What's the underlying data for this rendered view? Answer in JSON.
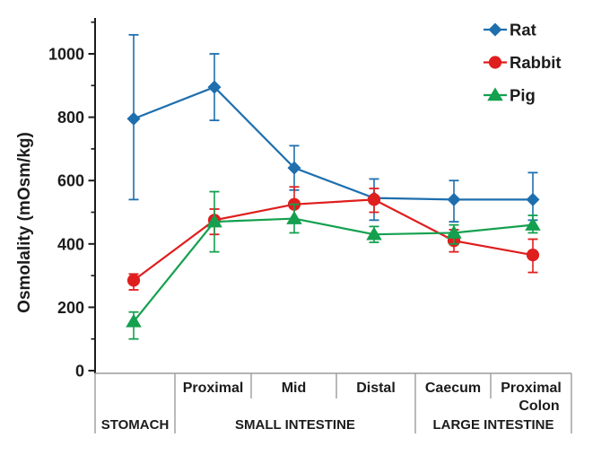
{
  "chart_data": {
    "type": "line",
    "title": "",
    "ylabel": "Osmolality  (mOsm/kg)",
    "ylim": [
      0,
      1100
    ],
    "yticks": [
      0,
      200,
      400,
      600,
      800,
      1000
    ],
    "yticks_minor": [
      100,
      300,
      500,
      700,
      900,
      1100
    ],
    "grid": false,
    "legend_position": "top-right",
    "categories": [
      "Stomach",
      "Proximal small intestine",
      "Mid small intestine",
      "Distal small intestine",
      "Caecum",
      "Proximal colon"
    ],
    "series": [
      {
        "name": "Rat",
        "color": "#1e6fae",
        "marker": "diamond",
        "values": [
          795,
          895,
          640,
          545,
          540,
          540
        ],
        "err_low": [
          540,
          790,
          570,
          475,
          470,
          475
        ],
        "err_high": [
          1060,
          1000,
          710,
          605,
          600,
          625
        ]
      },
      {
        "name": "Rabbit",
        "color": "#df1e1e",
        "marker": "circle",
        "values": [
          285,
          475,
          525,
          540,
          410,
          365
        ],
        "err_low": [
          255,
          430,
          470,
          500,
          375,
          310
        ],
        "err_high": [
          305,
          510,
          580,
          575,
          445,
          415
        ]
      },
      {
        "name": "Pig",
        "color": "#14a04f",
        "marker": "triangle",
        "values": [
          155,
          470,
          480,
          430,
          435,
          460
        ],
        "err_low": [
          100,
          375,
          435,
          405,
          400,
          435
        ],
        "err_high": [
          185,
          565,
          525,
          455,
          460,
          490
        ]
      }
    ],
    "x_axis_table": {
      "sub_labels": [
        "",
        "Proximal",
        "Mid",
        "Distal",
        "Caecum",
        "Proximal\nColon"
      ],
      "group_labels": [
        {
          "label": "STOMACH",
          "start": 0,
          "end": 1
        },
        {
          "label": "SMALL INTESTINE",
          "start": 1,
          "end": 4
        },
        {
          "label": "LARGE INTESTINE",
          "start": 4,
          "end": 6
        }
      ]
    },
    "colors": {
      "axis": "#1c1c1c",
      "table_lines": "#9b9b9b",
      "text": "#1c1c1c"
    }
  }
}
